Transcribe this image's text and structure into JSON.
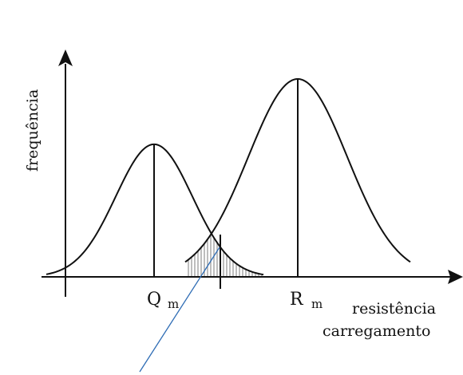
{
  "labels": {
    "y_axis": "frequência",
    "q_letter": "Q",
    "q_sub": "m",
    "r_letter": "R",
    "r_sub": "m",
    "x_line1": "resistência",
    "x_line2": "carregamento"
  },
  "colors": {
    "ink": "#111111",
    "hatch": "#9a9a9a",
    "pointer": "#2f6db5"
  },
  "distributions": {
    "load": {
      "name": "Q",
      "peak_relative_height": 0.67
    },
    "resistance": {
      "name": "R",
      "peak_relative_height": 1.0
    }
  }
}
